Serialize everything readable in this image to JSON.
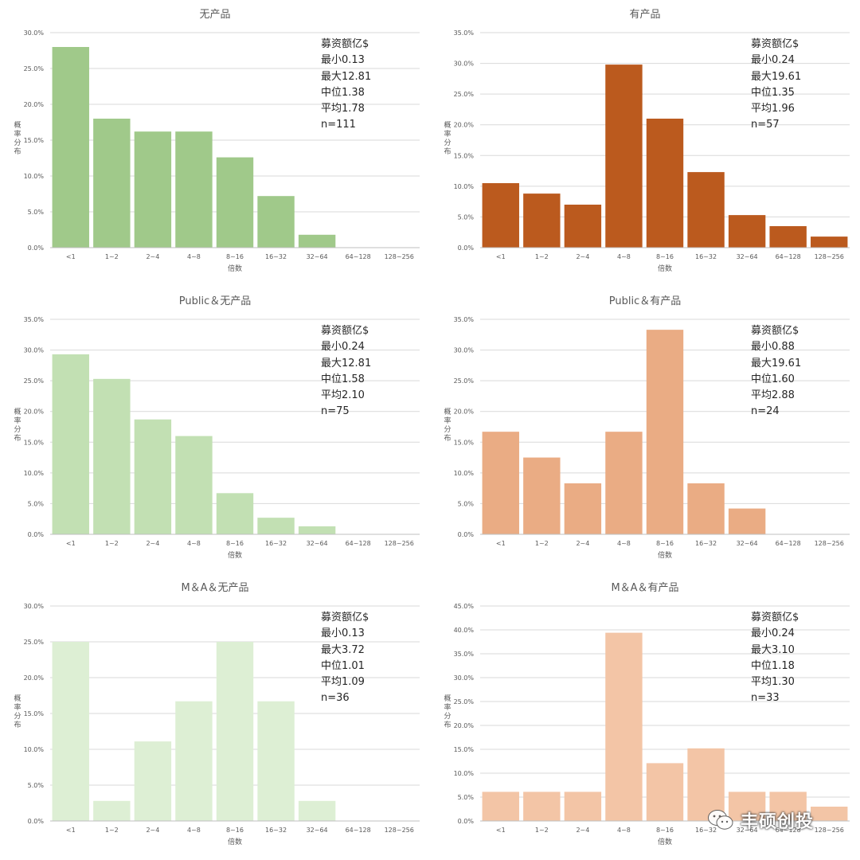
{
  "chart_data": [
    {
      "type": "bar",
      "title": "无产品",
      "xlabel": "倍数",
      "ylabel": "概率分布",
      "categories": [
        "<1",
        "1~2",
        "2~4",
        "4~8",
        "8~16",
        "16~32",
        "32~64",
        "64~128",
        "128~256"
      ],
      "values": [
        28.0,
        18.0,
        16.2,
        16.2,
        12.6,
        7.2,
        1.8,
        0,
        0
      ],
      "ylim": [
        0,
        30
      ],
      "yticks": [
        "0.0%",
        "5.0%",
        "10.0%",
        "15.0%",
        "20.0%",
        "25.0%",
        "30.0%"
      ],
      "color": "#a0c98a",
      "stats": [
        "募资额亿$",
        "最小0.13",
        "最大12.81",
        "中位1.38",
        "平均1.78",
        "n=111"
      ]
    },
    {
      "type": "bar",
      "title": "有产品",
      "xlabel": "倍数",
      "ylabel": "概率分布",
      "categories": [
        "<1",
        "1~2",
        "2~4",
        "4~8",
        "8~16",
        "16~32",
        "32~64",
        "64~128",
        "128~256"
      ],
      "values": [
        10.5,
        8.8,
        7.0,
        29.8,
        21.0,
        12.3,
        5.3,
        3.5,
        1.8
      ],
      "ylim": [
        0,
        35
      ],
      "yticks": [
        "0.0%",
        "5.0%",
        "10.0%",
        "15.0%",
        "20.0%",
        "25.0%",
        "30.0%",
        "35.0%"
      ],
      "color": "#bb5a1e",
      "stats": [
        "募资额亿$",
        "最小0.24",
        "最大19.61",
        "中位1.35",
        "平均1.96",
        "n=57"
      ]
    },
    {
      "type": "bar",
      "title": "Public＆无产品",
      "xlabel": "倍数",
      "ylabel": "概率分布",
      "categories": [
        "<1",
        "1~2",
        "2~4",
        "4~8",
        "8~16",
        "16~32",
        "32~64",
        "64~128",
        "128~256"
      ],
      "values": [
        29.3,
        25.3,
        18.7,
        16.0,
        6.7,
        2.7,
        1.3,
        0,
        0
      ],
      "ylim": [
        0,
        35
      ],
      "yticks": [
        "0.0%",
        "5.0%",
        "10.0%",
        "15.0%",
        "20.0%",
        "25.0%",
        "30.0%",
        "35.0%"
      ],
      "color": "#c2e0b3",
      "stats": [
        "募资额亿$",
        "最小0.24",
        "最大12.81",
        "中位1.58",
        "平均2.10",
        "n=75"
      ]
    },
    {
      "type": "bar",
      "title": "Public＆有产品",
      "xlabel": "倍数",
      "ylabel": "概率分布",
      "categories": [
        "<1",
        "1~2",
        "2~4",
        "4~8",
        "8~16",
        "16~32",
        "32~64",
        "64~128",
        "128~256"
      ],
      "values": [
        16.7,
        12.5,
        8.3,
        16.7,
        33.3,
        8.3,
        4.2,
        0,
        0
      ],
      "ylim": [
        0,
        35
      ],
      "yticks": [
        "0.0%",
        "5.0%",
        "10.0%",
        "15.0%",
        "20.0%",
        "25.0%",
        "30.0%",
        "35.0%"
      ],
      "color": "#eaac84",
      "stats": [
        "募资额亿$",
        "最小0.88",
        "最大19.61",
        "中位1.60",
        "平均2.88",
        "n=24"
      ]
    },
    {
      "type": "bar",
      "title": "M＆A＆无产品",
      "xlabel": "倍数",
      "ylabel": "概率分布",
      "categories": [
        "<1",
        "1~2",
        "2~4",
        "4~8",
        "8~16",
        "16~32",
        "32~64",
        "64~128",
        "128~256"
      ],
      "values": [
        25.0,
        2.8,
        11.1,
        16.7,
        25.0,
        16.7,
        2.8,
        0,
        0
      ],
      "ylim": [
        0,
        30
      ],
      "yticks": [
        "0.0%",
        "5.0%",
        "10.0%",
        "15.0%",
        "20.0%",
        "25.0%",
        "30.0%"
      ],
      "color": "#ddefd4",
      "stats": [
        "募资额亿$",
        "最小0.13",
        "最大3.72",
        "中位1.01",
        "平均1.09",
        "n=36"
      ]
    },
    {
      "type": "bar",
      "title": "M＆A＆有产品",
      "xlabel": "倍数",
      "ylabel": "概率分布",
      "categories": [
        "<1",
        "1~2",
        "2~4",
        "4~8",
        "8~16",
        "16~32",
        "32~64",
        "64~128",
        "128~256"
      ],
      "values": [
        6.1,
        6.1,
        6.1,
        39.4,
        12.1,
        15.2,
        6.1,
        6.1,
        3.0
      ],
      "ylim": [
        0,
        45
      ],
      "yticks": [
        "0.0%",
        "5.0%",
        "10.0%",
        "15.0%",
        "20.0%",
        "25.0%",
        "30.0%",
        "35.0%",
        "40.0%",
        "45.0%"
      ],
      "color": "#f3c5a6",
      "stats": [
        "募资额亿$",
        "最小0.24",
        "最大3.10",
        "中位1.18",
        "平均1.30",
        "n=33"
      ]
    }
  ],
  "watermark": {
    "text": "丰硕创投",
    "icon": "wechat-icon"
  }
}
